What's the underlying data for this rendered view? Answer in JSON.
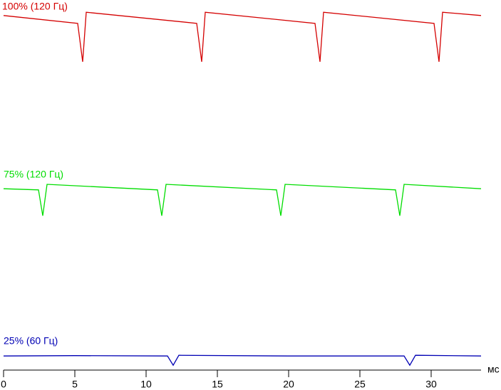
{
  "chart_data": {
    "type": "line",
    "x_label": "мс",
    "xlim": [
      0,
      33.5
    ],
    "xticks": [
      0,
      5,
      10,
      15,
      20,
      25,
      30
    ],
    "ylim": [
      0,
      100
    ],
    "series": [
      {
        "name": "100% (120 Гц)",
        "color": "#d40000",
        "x": [
          0,
          5.2,
          5.55,
          5.8,
          13.55,
          13.9,
          14.15,
          21.85,
          22.2,
          22.45,
          30.2,
          30.55,
          30.8,
          33.5
        ],
        "values": [
          95.8,
          93.7,
          83.3,
          96.7,
          93.7,
          83.3,
          96.7,
          93.7,
          83.3,
          96.7,
          93.7,
          83.3,
          96.7,
          95.8
        ]
      },
      {
        "name": "75% (120 Гц)",
        "color": "#00dd00",
        "x": [
          0,
          2.45,
          2.75,
          3.05,
          10.8,
          11.1,
          11.4,
          19.15,
          19.45,
          19.75,
          27.5,
          27.8,
          28.1,
          33.5
        ],
        "values": [
          49.0,
          48.7,
          41.7,
          50.2,
          48.7,
          41.7,
          50.2,
          48.7,
          41.7,
          50.2,
          48.7,
          41.7,
          50.2,
          49.0
        ]
      },
      {
        "name": "25% (60 Гц)",
        "color": "#0000b4",
        "x": [
          0,
          5,
          11.5,
          11.9,
          12.3,
          20,
          28.1,
          28.5,
          28.9,
          33.5
        ],
        "values": [
          3.8,
          3.9,
          3.8,
          1.3,
          4.0,
          3.8,
          3.8,
          1.3,
          4.0,
          3.8
        ]
      }
    ]
  }
}
